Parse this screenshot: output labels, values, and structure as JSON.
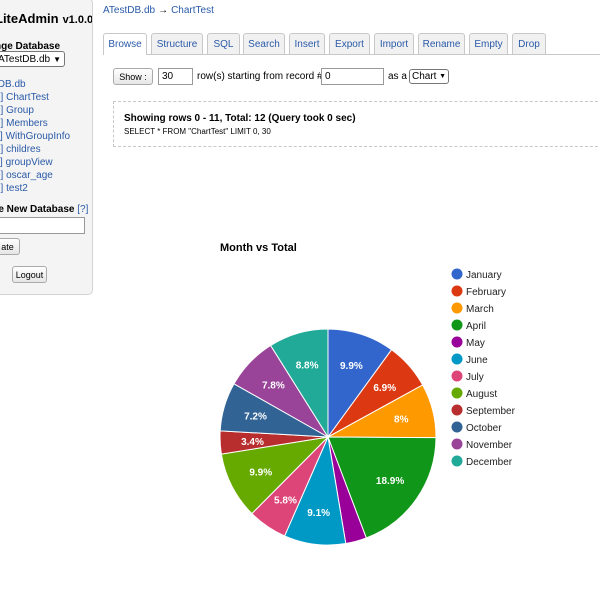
{
  "app": {
    "name": "LiteAdmin",
    "version": "v1.0.0"
  },
  "sidebar": {
    "change_db_label": "nge Database",
    "selected_db": "ATestDB.db",
    "tables": [
      {
        "kind": "",
        "name": "tDB.db"
      },
      {
        "kind": "e]",
        "name": "ChartTest"
      },
      {
        "kind": "e]",
        "name": "Group"
      },
      {
        "kind": "e]",
        "name": "Members"
      },
      {
        "kind": "v]",
        "name": "WithGroupInfo"
      },
      {
        "kind": "e]",
        "name": "childres"
      },
      {
        "kind": "v]",
        "name": "groupView"
      },
      {
        "kind": "e]",
        "name": "oscar_age"
      },
      {
        "kind": "e]",
        "name": "test2"
      }
    ],
    "new_db_label": "te New Database",
    "help": "[?]",
    "create_btn": "ate",
    "logout_btn": "Logout"
  },
  "breadcrumb": {
    "db": "ATestDB.db",
    "arrow": "→",
    "table": "ChartTest"
  },
  "tabs": [
    "Browse",
    "Structure",
    "SQL",
    "Search",
    "Insert",
    "Export",
    "Import",
    "Rename",
    "Empty",
    "Drop"
  ],
  "controls": {
    "show_btn": "Show :",
    "rows_value": "30",
    "rows_text": "row(s) starting from record #",
    "start_value": "0",
    "as_text": "as a",
    "view_select": "Chart"
  },
  "result": {
    "summary": "Showing rows 0 - 11, Total: 12 (Query took 0 sec)",
    "query": "SELECT * FROM \"ChartTest\" LIMIT 0, 30"
  },
  "chart_data": {
    "type": "pie",
    "title": "Month vs Total",
    "categories": [
      "January",
      "February",
      "March",
      "April",
      "May",
      "June",
      "July",
      "August",
      "September",
      "October",
      "November",
      "December"
    ],
    "values": [
      9.9,
      6.9,
      8.0,
      18.9,
      3.1,
      9.1,
      5.8,
      9.9,
      3.4,
      7.2,
      7.8,
      8.8
    ],
    "labels": [
      "9.9%",
      "6.9%",
      "8%",
      "18.9%",
      "",
      "9.1%",
      "5.8%",
      "9.9%",
      "3.4%",
      "7.2%",
      "7.8%",
      "8.8%"
    ],
    "colors": [
      "#3366cc",
      "#dc3912",
      "#ff9900",
      "#109618",
      "#990099",
      "#0099c6",
      "#dd4477",
      "#66aa00",
      "#b82e2e",
      "#316395",
      "#994499",
      "#22aa99"
    ],
    "legend_position": "right"
  }
}
